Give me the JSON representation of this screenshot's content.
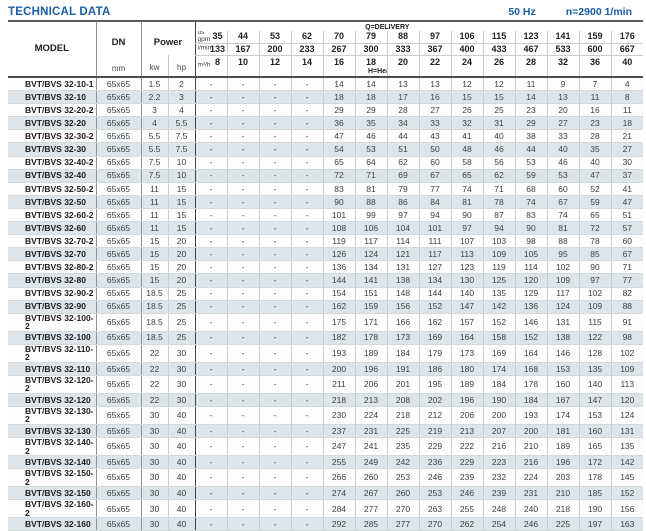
{
  "page": {
    "title": "TECHNICAL DATA",
    "frequency": "50 Hz",
    "speed": "n=2900 1/min"
  },
  "table": {
    "headers": {
      "model": "MODEL",
      "dn": "DN",
      "dn_unit": "mm",
      "power": "Power",
      "power_units": [
        "kw",
        "hp"
      ],
      "delivery_label": "Q=DELIVERY",
      "head_label": "H=Head(m)",
      "units": {
        "gpm_line1": "us",
        "gpm_line2": "gpm",
        "lmin": "l/min",
        "m3h": "m³/h"
      },
      "gpm": [
        "35",
        "44",
        "53",
        "62",
        "70",
        "79",
        "88",
        "97",
        "106",
        "115",
        "123",
        "141",
        "159",
        "176"
      ],
      "lmin": [
        "133",
        "167",
        "200",
        "233",
        "267",
        "300",
        "333",
        "367",
        "400",
        "433",
        "467",
        "533",
        "600",
        "667"
      ],
      "m3h": [
        "8",
        "10",
        "12",
        "14",
        "16",
        "18",
        "20",
        "22",
        "24",
        "26",
        "28",
        "32",
        "36",
        "40"
      ]
    },
    "rows": [
      {
        "model": "BVT/BVS 32-10-1",
        "dn": "65x65",
        "kw": "1.5",
        "hp": "2",
        "heads": [
          "-",
          "-",
          "-",
          "-",
          "14",
          "14",
          "13",
          "13",
          "12",
          "12",
          "11",
          "9",
          "7",
          "4"
        ]
      },
      {
        "model": "BVT/BVS 32-10",
        "dn": "65x65",
        "kw": "2.2",
        "hp": "3",
        "heads": [
          "-",
          "-",
          "-",
          "-",
          "18",
          "18",
          "17",
          "16",
          "15",
          "15",
          "14",
          "13",
          "11",
          "8"
        ]
      },
      {
        "model": "BVT/BVS 32-20-2",
        "dn": "65x65",
        "kw": "3",
        "hp": "4",
        "heads": [
          "-",
          "-",
          "-",
          "-",
          "29",
          "29",
          "28",
          "27",
          "26",
          "25",
          "23",
          "20",
          "16",
          "11"
        ]
      },
      {
        "model": "BVT/BVS 32-20",
        "dn": "65x65",
        "kw": "4",
        "hp": "5.5",
        "heads": [
          "-",
          "-",
          "-",
          "-",
          "36",
          "35",
          "34",
          "33",
          "32",
          "31",
          "29",
          "27",
          "23",
          "18"
        ]
      },
      {
        "model": "BVT/BVS 32-30-2",
        "dn": "65x65",
        "kw": "5.5",
        "hp": "7.5",
        "heads": [
          "-",
          "-",
          "-",
          "-",
          "47",
          "46",
          "44",
          "43",
          "41",
          "40",
          "38",
          "33",
          "28",
          "21"
        ]
      },
      {
        "model": "BVT/BVS 32-30",
        "dn": "65x65",
        "kw": "5.5",
        "hp": "7.5",
        "heads": [
          "-",
          "-",
          "-",
          "-",
          "54",
          "53",
          "51",
          "50",
          "48",
          "46",
          "44",
          "40",
          "35",
          "27"
        ]
      },
      {
        "model": "BVT/BVS 32-40-2",
        "dn": "65x65",
        "kw": "7.5",
        "hp": "10",
        "heads": [
          "-",
          "-",
          "-",
          "-",
          "65",
          "64",
          "62",
          "60",
          "58",
          "56",
          "53",
          "46",
          "40",
          "30"
        ]
      },
      {
        "model": "BVT/BVS 32-40",
        "dn": "65x65",
        "kw": "7.5",
        "hp": "10",
        "heads": [
          "-",
          "-",
          "-",
          "-",
          "72",
          "71",
          "69",
          "67",
          "65",
          "62",
          "59",
          "53",
          "47",
          "37"
        ]
      },
      {
        "model": "BVT/BVS 32-50-2",
        "dn": "65x65",
        "kw": "11",
        "hp": "15",
        "heads": [
          "-",
          "-",
          "-",
          "-",
          "83",
          "81",
          "79",
          "77",
          "74",
          "71",
          "68",
          "60",
          "52",
          "41"
        ]
      },
      {
        "model": "BVT/BVS 32-50",
        "dn": "65x65",
        "kw": "11",
        "hp": "15",
        "heads": [
          "-",
          "-",
          "-",
          "-",
          "90",
          "88",
          "86",
          "84",
          "81",
          "78",
          "74",
          "67",
          "59",
          "47"
        ]
      },
      {
        "model": "BVT/BVS 32-60-2",
        "dn": "65x65",
        "kw": "11",
        "hp": "15",
        "heads": [
          "-",
          "-",
          "-",
          "-",
          "101",
          "99",
          "97",
          "94",
          "90",
          "87",
          "83",
          "74",
          "65",
          "51"
        ]
      },
      {
        "model": "BVT/BVS 32-60",
        "dn": "65x65",
        "kw": "11",
        "hp": "15",
        "heads": [
          "-",
          "-",
          "-",
          "-",
          "108",
          "106",
          "104",
          "101",
          "97",
          "94",
          "90",
          "81",
          "72",
          "57"
        ]
      },
      {
        "model": "BVT/BVS 32-70-2",
        "dn": "65x65",
        "kw": "15",
        "hp": "20",
        "heads": [
          "-",
          "-",
          "-",
          "-",
          "119",
          "117",
          "114",
          "111",
          "107",
          "103",
          "98",
          "88",
          "78",
          "60"
        ]
      },
      {
        "model": "BVT/BVS 32-70",
        "dn": "65x65",
        "kw": "15",
        "hp": "20",
        "heads": [
          "-",
          "-",
          "-",
          "-",
          "126",
          "124",
          "121",
          "117",
          "113",
          "109",
          "105",
          "95",
          "85",
          "67"
        ]
      },
      {
        "model": "BVT/BVS 32-80-2",
        "dn": "65x65",
        "kw": "15",
        "hp": "20",
        "heads": [
          "-",
          "-",
          "-",
          "-",
          "136",
          "134",
          "131",
          "127",
          "123",
          "119",
          "114",
          "102",
          "90",
          "71"
        ]
      },
      {
        "model": "BVT/BVS 32-80",
        "dn": "65x65",
        "kw": "15",
        "hp": "20",
        "heads": [
          "-",
          "-",
          "-",
          "-",
          "144",
          "141",
          "138",
          "134",
          "130",
          "125",
          "120",
          "109",
          "97",
          "77"
        ]
      },
      {
        "model": "BVT/BVS 32-90-2",
        "dn": "65x65",
        "kw": "18.5",
        "hp": "25",
        "heads": [
          "-",
          "-",
          "-",
          "-",
          "154",
          "151",
          "148",
          "144",
          "140",
          "135",
          "129",
          "117",
          "102",
          "82"
        ]
      },
      {
        "model": "BVT/BVS 32-90",
        "dn": "65x65",
        "kw": "18.5",
        "hp": "25",
        "heads": [
          "-",
          "-",
          "-",
          "-",
          "162",
          "159",
          "156",
          "152",
          "147",
          "142",
          "136",
          "124",
          "109",
          "88"
        ]
      },
      {
        "model": "BVT/BVS 32-100-2",
        "dn": "65x65",
        "kw": "18.5",
        "hp": "25",
        "heads": [
          "-",
          "-",
          "-",
          "-",
          "175",
          "171",
          "166",
          "162",
          "157",
          "152",
          "146",
          "131",
          "115",
          "91"
        ]
      },
      {
        "model": "BVT/BVS 32-100",
        "dn": "65x65",
        "kw": "18.5",
        "hp": "25",
        "heads": [
          "-",
          "-",
          "-",
          "-",
          "182",
          "178",
          "173",
          "169",
          "164",
          "158",
          "152",
          "138",
          "122",
          "98"
        ]
      },
      {
        "model": "BVT/BVS 32-110-2",
        "dn": "65x65",
        "kw": "22",
        "hp": "30",
        "heads": [
          "-",
          "-",
          "-",
          "-",
          "193",
          "189",
          "184",
          "179",
          "173",
          "169",
          "164",
          "146",
          "128",
          "102"
        ]
      },
      {
        "model": "BVT/BVS 32-110",
        "dn": "65x65",
        "kw": "22",
        "hp": "30",
        "heads": [
          "-",
          "-",
          "-",
          "-",
          "200",
          "196",
          "191",
          "186",
          "180",
          "174",
          "168",
          "153",
          "135",
          "109"
        ]
      },
      {
        "model": "BVT/BVS 32-120-2",
        "dn": "65x65",
        "kw": "22",
        "hp": "30",
        "heads": [
          "-",
          "-",
          "-",
          "-",
          "211",
          "206",
          "201",
          "195",
          "189",
          "184",
          "178",
          "160",
          "140",
          "113"
        ]
      },
      {
        "model": "BVT/BVS 32-120",
        "dn": "65x65",
        "kw": "22",
        "hp": "30",
        "heads": [
          "-",
          "-",
          "-",
          "-",
          "218",
          "213",
          "208",
          "202",
          "196",
          "190",
          "184",
          "167",
          "147",
          "120"
        ]
      },
      {
        "model": "BVT/BVS 32-130-2",
        "dn": "65x65",
        "kw": "30",
        "hp": "40",
        "heads": [
          "-",
          "-",
          "-",
          "-",
          "230",
          "224",
          "218",
          "212",
          "206",
          "200",
          "193",
          "174",
          "153",
          "124"
        ]
      },
      {
        "model": "BVT/BVS 32-130",
        "dn": "65x65",
        "kw": "30",
        "hp": "40",
        "heads": [
          "-",
          "-",
          "-",
          "-",
          "237",
          "231",
          "225",
          "219",
          "213",
          "207",
          "200",
          "181",
          "160",
          "131"
        ]
      },
      {
        "model": "BVT/BVS 32-140-2",
        "dn": "65x65",
        "kw": "30",
        "hp": "40",
        "heads": [
          "-",
          "-",
          "-",
          "-",
          "247",
          "241",
          "235",
          "229",
          "222",
          "216",
          "210",
          "189",
          "165",
          "135"
        ]
      },
      {
        "model": "BVT/BVS 32-140",
        "dn": "65x65",
        "kw": "30",
        "hp": "40",
        "heads": [
          "-",
          "-",
          "-",
          "-",
          "255",
          "249",
          "242",
          "236",
          "229",
          "223",
          "216",
          "196",
          "172",
          "142"
        ]
      },
      {
        "model": "BVT/BVS 32-150-2",
        "dn": "65x65",
        "kw": "30",
        "hp": "40",
        "heads": [
          "-",
          "-",
          "-",
          "-",
          "266",
          "260",
          "253",
          "246",
          "239",
          "232",
          "224",
          "203",
          "178",
          "145"
        ]
      },
      {
        "model": "BVT/BVS 32-150",
        "dn": "65x65",
        "kw": "30",
        "hp": "40",
        "heads": [
          "-",
          "-",
          "-",
          "-",
          "274",
          "267",
          "260",
          "253",
          "246",
          "239",
          "231",
          "210",
          "185",
          "152"
        ]
      },
      {
        "model": "BVT/BVS 32-160-2",
        "dn": "65x65",
        "kw": "30",
        "hp": "40",
        "heads": [
          "-",
          "-",
          "-",
          "-",
          "284",
          "277",
          "270",
          "263",
          "255",
          "248",
          "240",
          "218",
          "190",
          "156"
        ]
      },
      {
        "model": "BVT/BVS 32-160",
        "dn": "65x65",
        "kw": "30",
        "hp": "40",
        "heads": [
          "-",
          "-",
          "-",
          "-",
          "292",
          "285",
          "277",
          "270",
          "262",
          "254",
          "246",
          "225",
          "197",
          "163"
        ]
      }
    ]
  }
}
